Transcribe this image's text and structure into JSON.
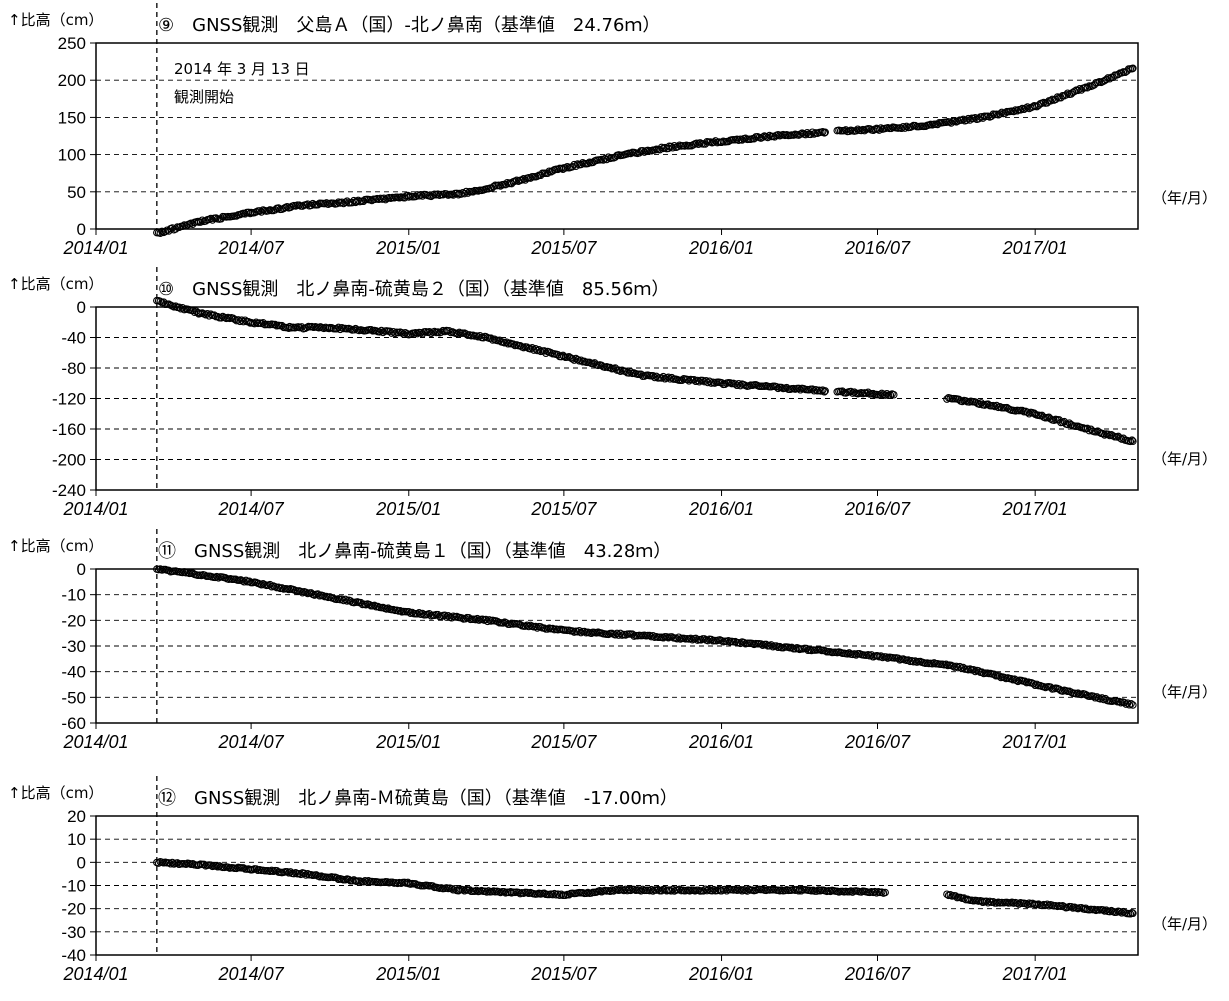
{
  "chart_data": [
    {
      "type": "scatter",
      "title": "⑨　GNSS観測　父島Ａ（国）-北ノ鼻南（基準値　24.76ｍ）",
      "ylabel": "↑比高（cm）",
      "xunit": "（年/月）",
      "x_ticks": [
        "2014/01",
        "2014/07",
        "2015/01",
        "2015/07",
        "2016/01",
        "2016/07",
        "2017/01"
      ],
      "xlim": [
        "2014/01/01",
        "2017/05/01"
      ],
      "ylim": [
        0,
        250
      ],
      "y_ticks": [
        0,
        50,
        100,
        150,
        200,
        250
      ],
      "gridlines": [
        50,
        100,
        150,
        200
      ],
      "grid": true,
      "segments": [
        [
          [
            "2014/03/13",
            -6
          ],
          [
            "2014/05/01",
            10
          ],
          [
            "2014/07/01",
            22
          ],
          [
            "2014/09/01",
            32
          ],
          [
            "2014/11/01",
            37
          ],
          [
            "2015/01/01",
            44
          ],
          [
            "2015/03/01",
            47
          ],
          [
            "2015/05/01",
            62
          ],
          [
            "2015/07/01",
            82
          ],
          [
            "2015/09/01",
            98
          ],
          [
            "2015/11/01",
            110
          ],
          [
            "2016/01/01",
            118
          ],
          [
            "2016/03/01",
            125
          ],
          [
            "2016/05/01",
            130
          ]
        ],
        [
          [
            "2016/05/15",
            132
          ],
          [
            "2016/07/01",
            134
          ],
          [
            "2016/09/01",
            140
          ],
          [
            "2016/11/01",
            150
          ],
          [
            "2017/01/01",
            165
          ],
          [
            "2017/03/01",
            190
          ],
          [
            "2017/04/25",
            216
          ]
        ]
      ],
      "annotation": [
        "2014 年 3 月 13 日",
        "観測開始"
      ],
      "start_marker": "2014/03/13"
    },
    {
      "type": "scatter",
      "title": "⑩　GNSS観測　北ノ鼻南-硫黄島２（国）（基準値　85.56ｍ）",
      "ylabel": "↑比高（cm）",
      "xunit": "（年/月）",
      "x_ticks": [
        "2014/01",
        "2014/07",
        "2015/01",
        "2015/07",
        "2016/01",
        "2016/07",
        "2017/01"
      ],
      "xlim": [
        "2014/01/01",
        "2017/05/01"
      ],
      "ylim": [
        -240,
        0
      ],
      "y_ticks": [
        0,
        -40,
        -80,
        -120,
        -160,
        -200,
        -240
      ],
      "gridlines": [
        -40,
        -80,
        -120,
        -160,
        -200
      ],
      "grid": true,
      "segments": [
        [
          [
            "2014/03/13",
            8
          ],
          [
            "2014/05/01",
            -8
          ],
          [
            "2014/07/01",
            -20
          ],
          [
            "2014/08/15",
            -27
          ],
          [
            "2014/10/01",
            -27
          ],
          [
            "2015/01/01",
            -35
          ],
          [
            "2015/02/15",
            -32
          ],
          [
            "2015/04/01",
            -40
          ],
          [
            "2015/07/01",
            -65
          ],
          [
            "2015/10/01",
            -90
          ],
          [
            "2016/01/01",
            -100
          ],
          [
            "2016/03/01",
            -105
          ],
          [
            "2016/05/01",
            -110
          ]
        ],
        [
          [
            "2016/05/15",
            -111
          ],
          [
            "2016/07/20",
            -115
          ]
        ],
        [
          [
            "2016/09/20",
            -120
          ],
          [
            "2016/11/01",
            -127
          ],
          [
            "2017/01/01",
            -140
          ],
          [
            "2017/03/01",
            -160
          ],
          [
            "2017/04/25",
            -176
          ]
        ]
      ],
      "start_marker": "2014/03/13"
    },
    {
      "type": "scatter",
      "title": "⑪　GNSS観測　北ノ鼻南-硫黄島１（国）（基準値　43.28ｍ）",
      "ylabel": "↑比高（cm）",
      "xunit": "（年/月）",
      "x_ticks": [
        "2014/01",
        "2014/07",
        "2015/01",
        "2015/07",
        "2016/01",
        "2016/07",
        "2017/01"
      ],
      "xlim": [
        "2014/01/01",
        "2017/05/01"
      ],
      "ylim": [
        -60,
        0
      ],
      "y_ticks": [
        0,
        -10,
        -20,
        -30,
        -40,
        -50,
        -60
      ],
      "gridlines": [
        -10,
        -20,
        -30,
        -40,
        -50
      ],
      "grid": true,
      "segments": [
        [
          [
            "2014/03/13",
            0
          ],
          [
            "2014/07/01",
            -5
          ],
          [
            "2014/10/01",
            -11
          ],
          [
            "2015/01/01",
            -17
          ],
          [
            "2015/04/01",
            -20
          ],
          [
            "2015/07/01",
            -24
          ],
          [
            "2015/10/01",
            -26
          ],
          [
            "2016/01/01",
            -28
          ],
          [
            "2016/04/01",
            -31
          ],
          [
            "2016/07/01",
            -34
          ],
          [
            "2016/10/01",
            -38
          ],
          [
            "2017/01/01",
            -45
          ],
          [
            "2017/04/25",
            -53
          ]
        ]
      ],
      "start_marker": "2014/03/13"
    },
    {
      "type": "scatter",
      "title": "⑫　GNSS観測　北ノ鼻南-Ｍ硫黄島（国）（基準値　-17.00ｍ）",
      "ylabel": "↑比高（cm）",
      "xunit": "（年/月）",
      "x_ticks": [
        "2014/01",
        "2014/07",
        "2015/01",
        "2015/07",
        "2016/01",
        "2016/07",
        "2017/01"
      ],
      "xlim": [
        "2014/01/01",
        "2017/05/01"
      ],
      "ylim": [
        -40,
        20
      ],
      "y_ticks": [
        20,
        10,
        0,
        -10,
        -20,
        -30,
        -40
      ],
      "gridlines": [
        10,
        0,
        -10,
        -20,
        -30
      ],
      "grid": true,
      "segments": [
        [
          [
            "2014/03/13",
            0
          ],
          [
            "2014/05/01",
            -1
          ],
          [
            "2014/07/01",
            -3
          ],
          [
            "2014/09/01",
            -5
          ],
          [
            "2014/11/01",
            -8
          ],
          [
            "2015/01/01",
            -9
          ],
          [
            "2015/03/01",
            -12
          ],
          [
            "2015/05/01",
            -13
          ],
          [
            "2015/07/01",
            -14
          ],
          [
            "2015/09/01",
            -12
          ],
          [
            "2015/11/01",
            -12
          ],
          [
            "2016/01/01",
            -12
          ],
          [
            "2016/04/01",
            -12
          ],
          [
            "2016/07/10",
            -13
          ]
        ],
        [
          [
            "2016/09/20",
            -14
          ],
          [
            "2016/10/15",
            -16
          ],
          [
            "2016/11/01",
            -17
          ],
          [
            "2017/01/01",
            -18
          ],
          [
            "2017/03/01",
            -20
          ],
          [
            "2017/04/25",
            -22
          ]
        ]
      ],
      "start_marker": "2014/03/13"
    }
  ]
}
